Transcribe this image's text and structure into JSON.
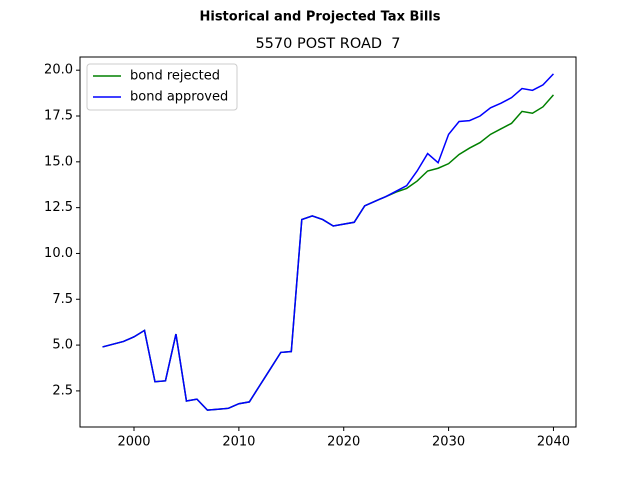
{
  "chart_data": {
    "type": "line",
    "title": "Historical and Projected Tax Bills",
    "subtitle": "5570 POST ROAD  7",
    "x": [
      1997,
      1998,
      1999,
      2000,
      2001,
      2002,
      2003,
      2004,
      2005,
      2006,
      2007,
      2008,
      2009,
      2010,
      2011,
      2012,
      2013,
      2014,
      2015,
      2016,
      2017,
      2018,
      2019,
      2020,
      2021,
      2022,
      2023,
      2024,
      2025,
      2026,
      2027,
      2028,
      2029,
      2030,
      2031,
      2032,
      2033,
      2034,
      2035,
      2036,
      2037,
      2038,
      2039,
      2040
    ],
    "series": [
      {
        "name": "bond rejected",
        "color": "#008000",
        "values": [
          4.9,
          5.05,
          5.2,
          5.45,
          5.8,
          3.0,
          3.05,
          5.6,
          1.95,
          2.05,
          1.45,
          1.5,
          1.55,
          1.8,
          1.9,
          2.8,
          3.7,
          4.6,
          4.65,
          11.85,
          12.05,
          11.85,
          11.5,
          11.6,
          11.7,
          12.6,
          12.85,
          13.1,
          13.35,
          13.55,
          13.95,
          14.5,
          14.65,
          14.9,
          15.4,
          15.75,
          16.05,
          16.5,
          16.8,
          17.1,
          17.75,
          17.65,
          18.0,
          18.65
        ]
      },
      {
        "name": "bond approved",
        "color": "#0000ff",
        "values": [
          4.9,
          5.05,
          5.2,
          5.45,
          5.8,
          3.0,
          3.05,
          5.6,
          1.95,
          2.05,
          1.45,
          1.5,
          1.55,
          1.8,
          1.9,
          2.8,
          3.7,
          4.6,
          4.65,
          11.85,
          12.05,
          11.85,
          11.5,
          11.6,
          11.7,
          12.6,
          12.85,
          13.1,
          13.4,
          13.7,
          14.5,
          15.45,
          14.95,
          16.5,
          17.2,
          17.25,
          17.5,
          17.95,
          18.2,
          18.5,
          19.0,
          18.9,
          19.2,
          19.8
        ]
      }
    ],
    "xlim": [
      1994.85,
      2042.15
    ],
    "xticks": [
      2000,
      2010,
      2020,
      2030,
      2040
    ],
    "ylim": [
      0.53,
      20.72
    ],
    "yticks": [
      2.5,
      {
        "value": 5.0,
        "label": "5.0"
      },
      7.5,
      {
        "value": 10.0,
        "label": "10.0"
      },
      12.5,
      {
        "value": 15.0,
        "label": "15.0"
      },
      17.5,
      {
        "value": 20.0,
        "label": "20.0"
      }
    ],
    "legend": "upper left"
  }
}
